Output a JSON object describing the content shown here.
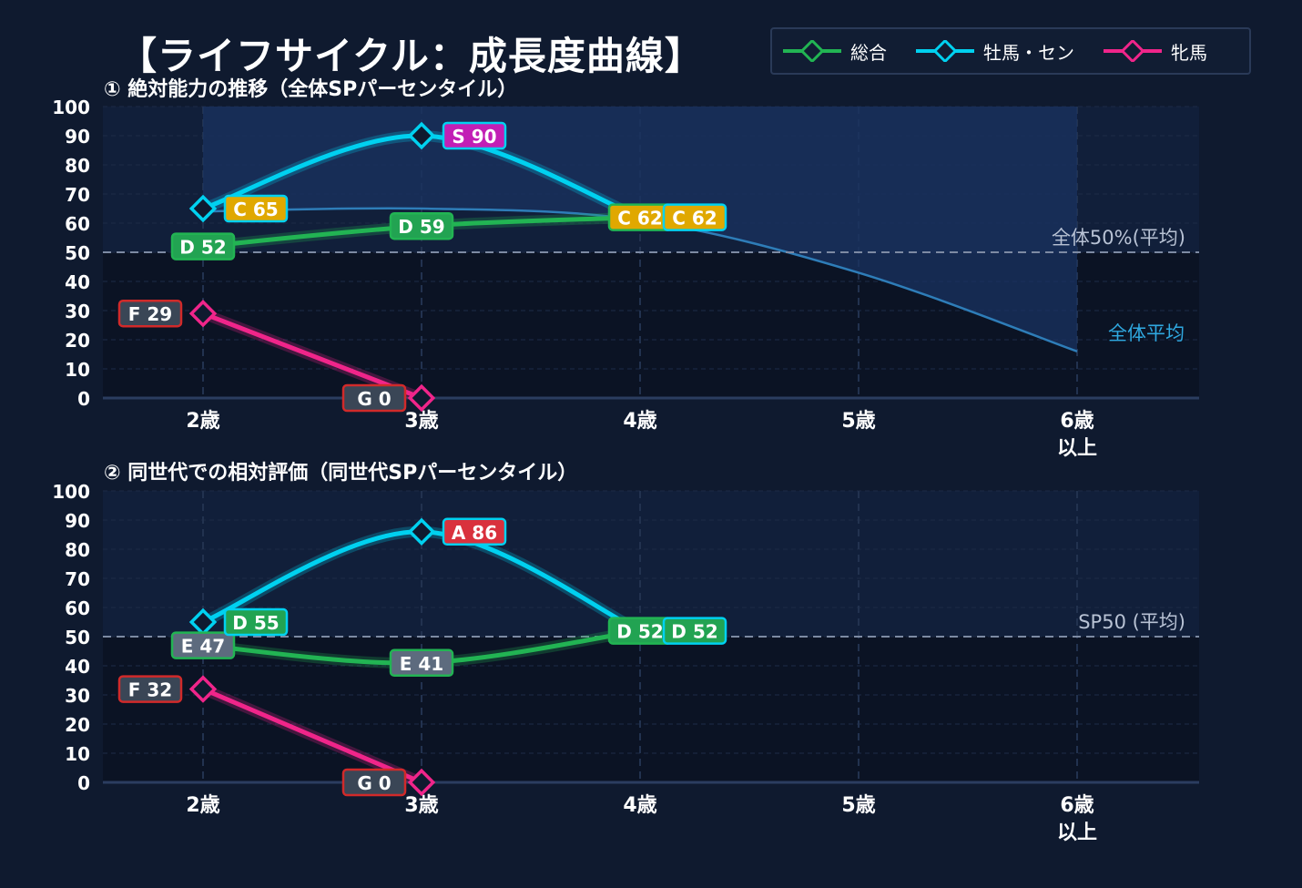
{
  "title": "【ライフサイクル：成長度曲線】",
  "legend": [
    {
      "label": "総合",
      "color": "#22b453"
    },
    {
      "label": "牡馬・セン",
      "color": "#00d1f0"
    },
    {
      "label": "牝馬",
      "color": "#f0258a"
    }
  ],
  "chart_data": [
    {
      "type": "line",
      "title": "① 絶対能力の推移（全体SPパーセンタイル）",
      "categories": [
        "2歳",
        "3歳",
        "4歳",
        "5歳",
        "6歳\n以上"
      ],
      "ylim": [
        0,
        100
      ],
      "yticks": [
        0,
        10,
        20,
        30,
        40,
        50,
        60,
        70,
        80,
        90,
        100
      ],
      "grid": true,
      "reference_line": {
        "value": 50,
        "label": "全体50%(平均)"
      },
      "average_curve": {
        "label": "全体平均",
        "values": [
          64,
          65,
          61,
          43,
          16
        ]
      },
      "series": [
        {
          "name": "総合",
          "color": "#22b453",
          "values": [
            52,
            59,
            62,
            null,
            null
          ],
          "labels": [
            "D 52",
            "D 59",
            "C 62",
            null,
            null
          ]
        },
        {
          "name": "牡馬・セン",
          "color": "#00d1f0",
          "values": [
            65,
            90,
            62,
            null,
            null
          ],
          "labels": [
            "C 65",
            "S 90",
            "C 62",
            null,
            null
          ]
        },
        {
          "name": "牝馬",
          "color": "#f0258a",
          "values": [
            29,
            0,
            null,
            null,
            null
          ],
          "labels": [
            "F 29",
            "G 0",
            null,
            null,
            null
          ]
        }
      ]
    },
    {
      "type": "line",
      "title": "② 同世代での相対評価（同世代SPパーセンタイル）",
      "categories": [
        "2歳",
        "3歳",
        "4歳",
        "5歳",
        "6歳\n以上"
      ],
      "ylim": [
        0,
        100
      ],
      "yticks": [
        0,
        10,
        20,
        30,
        40,
        50,
        60,
        70,
        80,
        90,
        100
      ],
      "grid": true,
      "reference_line": {
        "value": 50,
        "label": "SP50 (平均)"
      },
      "series": [
        {
          "name": "総合",
          "color": "#22b453",
          "values": [
            47,
            41,
            52,
            null,
            null
          ],
          "labels": [
            "E 47",
            "E 41",
            "D 52",
            null,
            null
          ]
        },
        {
          "name": "牡馬・セン",
          "color": "#00d1f0",
          "values": [
            55,
            86,
            52,
            null,
            null
          ],
          "labels": [
            "D 55",
            "A 86",
            "D 52",
            null,
            null
          ]
        },
        {
          "name": "牝馬",
          "color": "#f0258a",
          "values": [
            32,
            0,
            null,
            null,
            null
          ],
          "labels": [
            "F 32",
            "G 0",
            null,
            null,
            null
          ]
        }
      ]
    }
  ]
}
